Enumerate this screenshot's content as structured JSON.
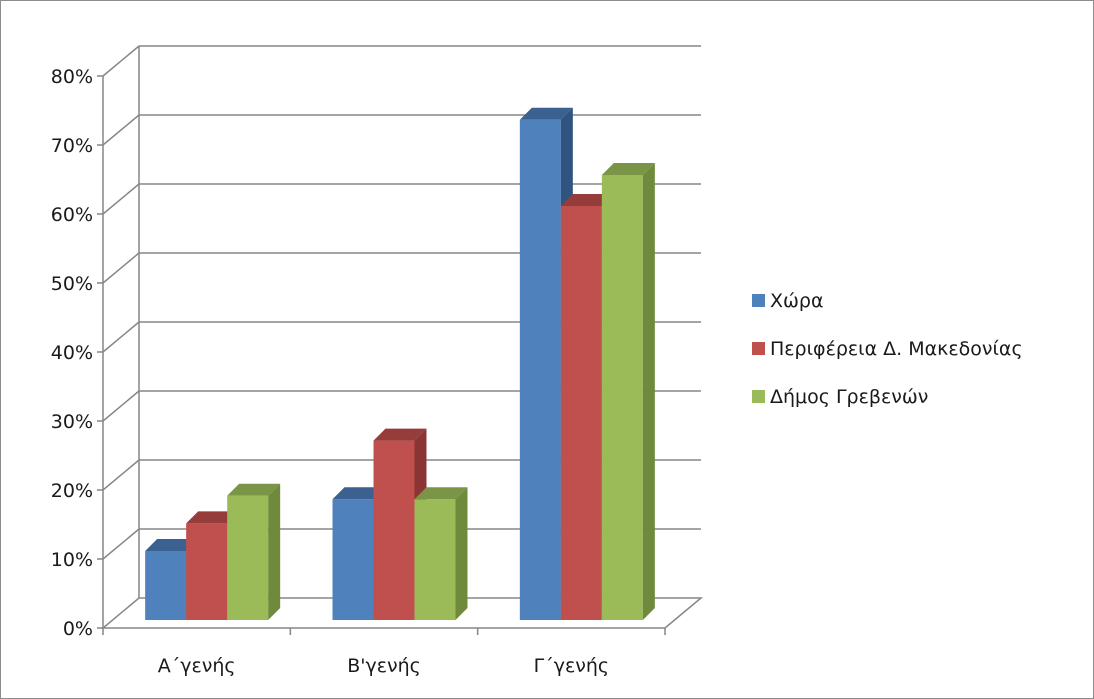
{
  "chart_data": {
    "type": "bar",
    "three_d": true,
    "categories": [
      "Α΄γενής",
      "Β'γενής",
      "Γ΄γενής"
    ],
    "series": [
      {
        "name": "Χώρα",
        "values": [
          0.1,
          0.175,
          0.725
        ],
        "color": "#4f81bd",
        "top_color": "#3a6190",
        "side_color": "#2f5480"
      },
      {
        "name": "Περιφέρεια  Δ. Μακεδονίας",
        "values": [
          0.14,
          0.26,
          0.6
        ],
        "color": "#c0504d",
        "top_color": "#963c3a",
        "side_color": "#8a3533"
      },
      {
        "name": "Δήμος Γρεβενών",
        "values": [
          0.18,
          0.175,
          0.645
        ],
        "color": "#9bbb59",
        "top_color": "#7a9545",
        "side_color": "#6f8a3c"
      }
    ],
    "yticks": [
      "0%",
      "10%",
      "20%",
      "30%",
      "40%",
      "50%",
      "60%",
      "70%",
      "80%"
    ],
    "ylim": [
      0,
      0.8
    ],
    "grid": true,
    "legend_position": "right"
  }
}
